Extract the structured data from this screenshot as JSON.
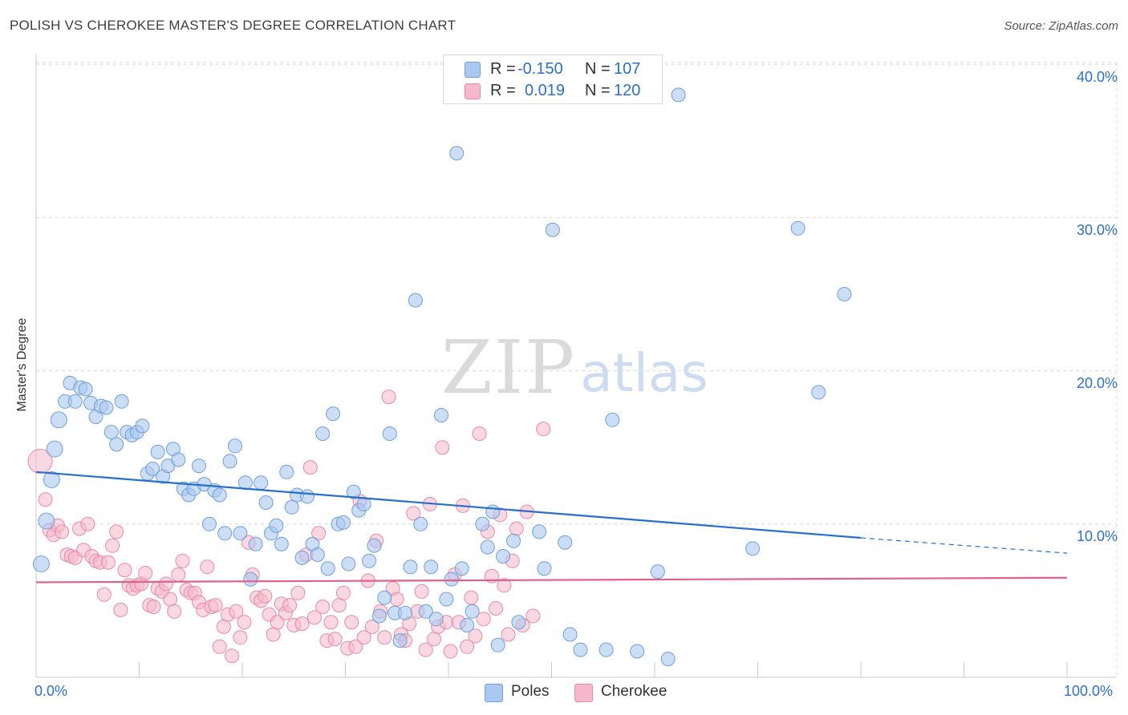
{
  "title": "POLISH VS CHEROKEE MASTER'S DEGREE CORRELATION CHART",
  "source": "Source: ZipAtlas.com",
  "watermark": {
    "zip": "ZIP",
    "atlas": "atlas"
  },
  "legend_top": {
    "rows": [
      {
        "r_label": "R =",
        "r_value": "-0.150",
        "n_label": "N =",
        "n_value": "107"
      },
      {
        "r_label": "R =",
        "r_value": "0.019",
        "n_label": "N =",
        "n_value": "120"
      }
    ]
  },
  "legend_bottom": [
    {
      "label": "Poles"
    },
    {
      "label": "Cherokee"
    }
  ],
  "axes": {
    "ylabel": "Master's Degree",
    "x_ticks": [
      "0.0%",
      "100.0%"
    ],
    "y_ticks": [
      "10.0%",
      "20.0%",
      "30.0%",
      "40.0%"
    ]
  },
  "colors": {
    "poles_fill": "#aac8f0",
    "poles_stroke": "#6f9fdc",
    "poles_line": "#2470d0",
    "cherokee_fill": "#f6b8cb",
    "cherokee_stroke": "#e88aa6",
    "cherokee_line": "#e0608a",
    "tick_text": "#2b6fd1",
    "grid": "#d8d8d8"
  },
  "chart_data": {
    "type": "scatter",
    "title": "POLISH VS CHEROKEE MASTER'S DEGREE CORRELATION CHART",
    "xlabel": "",
    "ylabel": "Master's Degree",
    "xlim": [
      0,
      100
    ],
    "ylim": [
      0,
      41
    ],
    "x_unit": "%",
    "y_unit": "%",
    "grid": true,
    "legend_position": "top-center",
    "series": [
      {
        "name": "Poles",
        "r": -0.15,
        "n": 107,
        "trend": {
          "x": [
            0,
            80,
            100
          ],
          "y": [
            13.4,
            9.1,
            8.1
          ],
          "dashed_from_x": 80
        },
        "points": [
          [
            0.5,
            7.4
          ],
          [
            1,
            10.2
          ],
          [
            1.5,
            12.9
          ],
          [
            1.8,
            14.9
          ],
          [
            2.2,
            16.8
          ],
          [
            2.8,
            18
          ],
          [
            3.3,
            19.2
          ],
          [
            3.8,
            18
          ],
          [
            4.3,
            18.9
          ],
          [
            4.8,
            18.8
          ],
          [
            5.3,
            17.9
          ],
          [
            5.8,
            17
          ],
          [
            6.3,
            17.7
          ],
          [
            6.8,
            17.6
          ],
          [
            7.3,
            16
          ],
          [
            7.8,
            15.2
          ],
          [
            8.3,
            18
          ],
          [
            8.8,
            16
          ],
          [
            9.3,
            15.8
          ],
          [
            9.8,
            16
          ],
          [
            10.3,
            16.4
          ],
          [
            10.8,
            13.3
          ],
          [
            11.3,
            13.6
          ],
          [
            11.8,
            14.7
          ],
          [
            12.3,
            13.1
          ],
          [
            12.8,
            13.8
          ],
          [
            13.3,
            14.9
          ],
          [
            13.8,
            14.2
          ],
          [
            14.3,
            12.3
          ],
          [
            14.8,
            11.9
          ],
          [
            15.3,
            12.3
          ],
          [
            15.8,
            13.8
          ],
          [
            16.3,
            12.6
          ],
          [
            16.8,
            10
          ],
          [
            17.3,
            12.2
          ],
          [
            17.8,
            11.9
          ],
          [
            18.3,
            9.4
          ],
          [
            18.8,
            14.1
          ],
          [
            19.3,
            15.1
          ],
          [
            19.8,
            9.4
          ],
          [
            20.3,
            12.7
          ],
          [
            20.8,
            6.4
          ],
          [
            21.3,
            8.7
          ],
          [
            21.8,
            12.7
          ],
          [
            22.3,
            11.4
          ],
          [
            22.8,
            9.4
          ],
          [
            23.3,
            9.9
          ],
          [
            23.8,
            8.7
          ],
          [
            24.3,
            13.4
          ],
          [
            24.8,
            11.1
          ],
          [
            25.3,
            11.9
          ],
          [
            25.8,
            7.8
          ],
          [
            26.3,
            11.8
          ],
          [
            26.8,
            8.7
          ],
          [
            27.3,
            8
          ],
          [
            27.8,
            15.9
          ],
          [
            28.3,
            7.1
          ],
          [
            28.8,
            17.2
          ],
          [
            29.3,
            10
          ],
          [
            29.8,
            10.1
          ],
          [
            30.3,
            7.4
          ],
          [
            30.8,
            12.1
          ],
          [
            31.3,
            10.9
          ],
          [
            31.8,
            11.3
          ],
          [
            32.3,
            7.6
          ],
          [
            32.8,
            8.6
          ],
          [
            33.3,
            4
          ],
          [
            33.8,
            5.2
          ],
          [
            34.3,
            15.9
          ],
          [
            34.8,
            4.2
          ],
          [
            35.3,
            2.4
          ],
          [
            35.8,
            4.2
          ],
          [
            36.3,
            7.2
          ],
          [
            36.8,
            24.6
          ],
          [
            37.3,
            10
          ],
          [
            37.8,
            4.3
          ],
          [
            38.3,
            7.2
          ],
          [
            38.8,
            3.8
          ],
          [
            39.3,
            17.1
          ],
          [
            39.8,
            5.1
          ],
          [
            40.3,
            6.4
          ],
          [
            40.8,
            34.2
          ],
          [
            41.3,
            7.1
          ],
          [
            41.8,
            3.4
          ],
          [
            42.3,
            4.3
          ],
          [
            43.3,
            10
          ],
          [
            43.8,
            8.5
          ],
          [
            44.3,
            10.8
          ],
          [
            44.8,
            2.1
          ],
          [
            45.3,
            7.9
          ],
          [
            46.3,
            8.9
          ],
          [
            46.8,
            3.6
          ],
          [
            48.8,
            9.5
          ],
          [
            49.3,
            7.1
          ],
          [
            50.1,
            29.2
          ],
          [
            51.3,
            8.8
          ],
          [
            51.8,
            2.8
          ],
          [
            52.8,
            1.8
          ],
          [
            55.3,
            1.8
          ],
          [
            55.9,
            16.8
          ],
          [
            58.3,
            1.7
          ],
          [
            60.3,
            6.9
          ],
          [
            61.3,
            1.2
          ],
          [
            62.3,
            38
          ],
          [
            69.5,
            8.4
          ],
          [
            73.9,
            29.3
          ],
          [
            75.9,
            18.6
          ],
          [
            78.4,
            25
          ]
        ]
      },
      {
        "name": "Cherokee",
        "r": 0.019,
        "n": 120,
        "trend": {
          "x": [
            0,
            100
          ],
          "y": [
            6.2,
            6.5
          ]
        },
        "points": [
          [
            0.4,
            14.1
          ],
          [
            0.9,
            11.6
          ],
          [
            1.3,
            9.6
          ],
          [
            1.7,
            9.3
          ],
          [
            2.1,
            9.9
          ],
          [
            2.5,
            9.5
          ],
          [
            3,
            8
          ],
          [
            3.4,
            7.9
          ],
          [
            3.8,
            7.8
          ],
          [
            4.2,
            9.7
          ],
          [
            4.6,
            8.3
          ],
          [
            5,
            10
          ],
          [
            5.4,
            7.9
          ],
          [
            5.8,
            7.6
          ],
          [
            6.2,
            7.5
          ],
          [
            6.6,
            5.4
          ],
          [
            7,
            7.5
          ],
          [
            7.4,
            8.6
          ],
          [
            7.8,
            9.5
          ],
          [
            8.2,
            4.4
          ],
          [
            8.6,
            7
          ],
          [
            9,
            6
          ],
          [
            9.4,
            5.8
          ],
          [
            9.8,
            6
          ],
          [
            10.2,
            6.1
          ],
          [
            10.6,
            6.8
          ],
          [
            11,
            4.7
          ],
          [
            11.4,
            4.6
          ],
          [
            11.8,
            5.8
          ],
          [
            12.2,
            5.6
          ],
          [
            12.6,
            6.1
          ],
          [
            13,
            5.1
          ],
          [
            13.4,
            4.3
          ],
          [
            13.8,
            6.7
          ],
          [
            14.2,
            7.6
          ],
          [
            14.6,
            5.7
          ],
          [
            15,
            5.5
          ],
          [
            15.4,
            5.5
          ],
          [
            15.8,
            4.9
          ],
          [
            16.2,
            4.4
          ],
          [
            16.6,
            7.2
          ],
          [
            17,
            4.6
          ],
          [
            17.4,
            4.7
          ],
          [
            17.8,
            2
          ],
          [
            18.2,
            3.3
          ],
          [
            18.6,
            4.1
          ],
          [
            19,
            1.4
          ],
          [
            19.4,
            4.3
          ],
          [
            19.8,
            2.6
          ],
          [
            20.2,
            3.6
          ],
          [
            20.6,
            8.8
          ],
          [
            21,
            6.7
          ],
          [
            21.4,
            5.2
          ],
          [
            21.8,
            5
          ],
          [
            22.2,
            5.3
          ],
          [
            22.6,
            4.1
          ],
          [
            23,
            2.8
          ],
          [
            23.4,
            3.6
          ],
          [
            23.8,
            4.8
          ],
          [
            24.2,
            4.2
          ],
          [
            24.6,
            4.7
          ],
          [
            25,
            3.4
          ],
          [
            25.4,
            5.5
          ],
          [
            25.8,
            3.5
          ],
          [
            26.2,
            8
          ],
          [
            26.6,
            13.7
          ],
          [
            27,
            3.9
          ],
          [
            27.4,
            9.4
          ],
          [
            27.8,
            4.6
          ],
          [
            28.2,
            2.4
          ],
          [
            28.6,
            3.6
          ],
          [
            29,
            2.5
          ],
          [
            29.4,
            4.7
          ],
          [
            29.8,
            5.5
          ],
          [
            30.2,
            1.9
          ],
          [
            30.6,
            3.6
          ],
          [
            31,
            2
          ],
          [
            31.4,
            11.5
          ],
          [
            31.8,
            2.6
          ],
          [
            32.2,
            6.3
          ],
          [
            32.6,
            3.3
          ],
          [
            33,
            8.9
          ],
          [
            33.4,
            4.3
          ],
          [
            33.8,
            2.6
          ],
          [
            34.2,
            18.3
          ],
          [
            34.6,
            5.8
          ],
          [
            35,
            5.1
          ],
          [
            35.4,
            2.8
          ],
          [
            35.8,
            2.4
          ],
          [
            36.2,
            3.5
          ],
          [
            36.6,
            10.7
          ],
          [
            37,
            4.3
          ],
          [
            37.4,
            5.6
          ],
          [
            37.8,
            1.8
          ],
          [
            38.2,
            11.3
          ],
          [
            38.6,
            2.5
          ],
          [
            39,
            3.3
          ],
          [
            39.4,
            15
          ],
          [
            39.8,
            3.6
          ],
          [
            40.2,
            1.7
          ],
          [
            40.6,
            6.7
          ],
          [
            41,
            3.6
          ],
          [
            41.4,
            11.2
          ],
          [
            41.8,
            2
          ],
          [
            42.2,
            5.2
          ],
          [
            42.6,
            2.7
          ],
          [
            43,
            15.9
          ],
          [
            43.4,
            3.8
          ],
          [
            43.8,
            9.5
          ],
          [
            44.2,
            6.6
          ],
          [
            44.6,
            4.5
          ],
          [
            45,
            10.6
          ],
          [
            45.4,
            6
          ],
          [
            45.8,
            2.8
          ],
          [
            46.2,
            7.6
          ],
          [
            46.6,
            9.7
          ],
          [
            47.2,
            3.4
          ],
          [
            47.6,
            10.8
          ],
          [
            48.2,
            4
          ],
          [
            49.2,
            16.2
          ]
        ]
      }
    ]
  }
}
